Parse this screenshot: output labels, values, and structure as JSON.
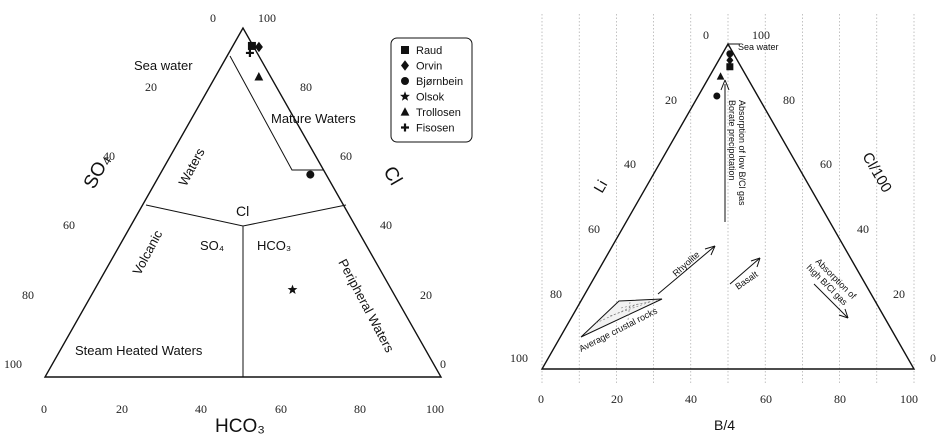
{
  "chart_data": [
    {
      "type": "ternary",
      "vertices": {
        "top": "Cl",
        "left": "SO4",
        "right": "HCO3"
      },
      "axis_labels": {
        "left": "SO₄",
        "right": "Cl",
        "bottom": "HCO₃"
      },
      "ticks": {
        "left": [
          "0",
          "20",
          "40",
          "60",
          "80",
          "100"
        ],
        "right": [
          "100",
          "80",
          "60",
          "40",
          "20",
          "0"
        ],
        "bottom": [
          "0",
          "20",
          "40",
          "60",
          "80",
          "100"
        ]
      },
      "fields": {
        "sea_water": "Sea water",
        "mature_waters": "Mature Waters",
        "volcanic_waters_1": "Volcanic",
        "volcanic_waters_2": "Waters",
        "peripheral_waters": "Peripheral Waters",
        "steam_heated_waters": "Steam Heated Waters",
        "center_cl": "Cl",
        "center_so4": "SO₄",
        "center_hco3": "HCO₃"
      },
      "series": [
        {
          "name": "Raud",
          "marker": "square",
          "points": [
            {
              "Cl": 94,
              "HCO3": 5,
              "SO4": 1
            }
          ]
        },
        {
          "name": "Orvin",
          "marker": "diamond",
          "points": [
            {
              "Cl": 94,
              "HCO3": 5,
              "SO4": 1
            }
          ]
        },
        {
          "name": "Bjørnbein",
          "marker": "circle",
          "points": [
            {
              "Cl": 58,
              "HCO3": 38,
              "SO4": 4
            }
          ]
        },
        {
          "name": "Olsok",
          "marker": "star",
          "points": [
            {
              "Cl": 25,
              "HCO3": 50,
              "SO4": 25
            }
          ]
        },
        {
          "name": "Trollosen",
          "marker": "triangle",
          "points": [
            {
              "Cl": 86,
              "HCO3": 11,
              "SO4": 3
            }
          ]
        },
        {
          "name": "Fisosen",
          "marker": "plus",
          "points": [
            {
              "Cl": 94,
              "HCO3": 5,
              "SO4": 1
            }
          ]
        }
      ]
    },
    {
      "type": "ternary",
      "vertices": {
        "top": "Cl/100",
        "left": "Li",
        "right": "B/4"
      },
      "axis_labels": {
        "left": "Li",
        "right": "Cl/100",
        "bottom": "B/4"
      },
      "ticks": {
        "left": [
          "0",
          "20",
          "40",
          "60",
          "80",
          "100"
        ],
        "right": [
          "100",
          "80",
          "60",
          "40",
          "20",
          "0"
        ],
        "bottom": [
          "0",
          "20",
          "40",
          "60",
          "80",
          "100"
        ]
      },
      "annotations": {
        "sea_water": "Sea water",
        "borate_1": "Borate precipotation",
        "borate_2": "Absorption of low B/Cl gas",
        "rhyolite": "Rhyolite",
        "basalt": "Basalt",
        "high_bcl_1": "Absorption of",
        "high_bcl_2": "high B/Cl gas",
        "crustal": "Average crustal rocks"
      },
      "points": [
        {
          "marker": "circle",
          "Cl": 97,
          "B": 2,
          "Li": 1
        },
        {
          "marker": "diamond",
          "Cl": 95,
          "B": 3,
          "Li": 2
        },
        {
          "marker": "square",
          "Cl": 93,
          "B": 4,
          "Li": 3
        },
        {
          "marker": "triangle",
          "Cl": 90,
          "B": 3,
          "Li": 7
        },
        {
          "marker": "circle",
          "Cl": 84,
          "B": 5,
          "Li": 11
        }
      ]
    }
  ],
  "legend": {
    "items": [
      {
        "label": "Raud",
        "marker": "square"
      },
      {
        "label": "Orvin",
        "marker": "diamond"
      },
      {
        "label": "Bjørnbein",
        "marker": "circle"
      },
      {
        "label": "Olsok",
        "marker": "star"
      },
      {
        "label": "Trollosen",
        "marker": "triangle"
      },
      {
        "label": "Fisosen",
        "marker": "plus"
      }
    ]
  },
  "colors": {
    "ink": "#111111",
    "grid": "#9a9a9a"
  }
}
